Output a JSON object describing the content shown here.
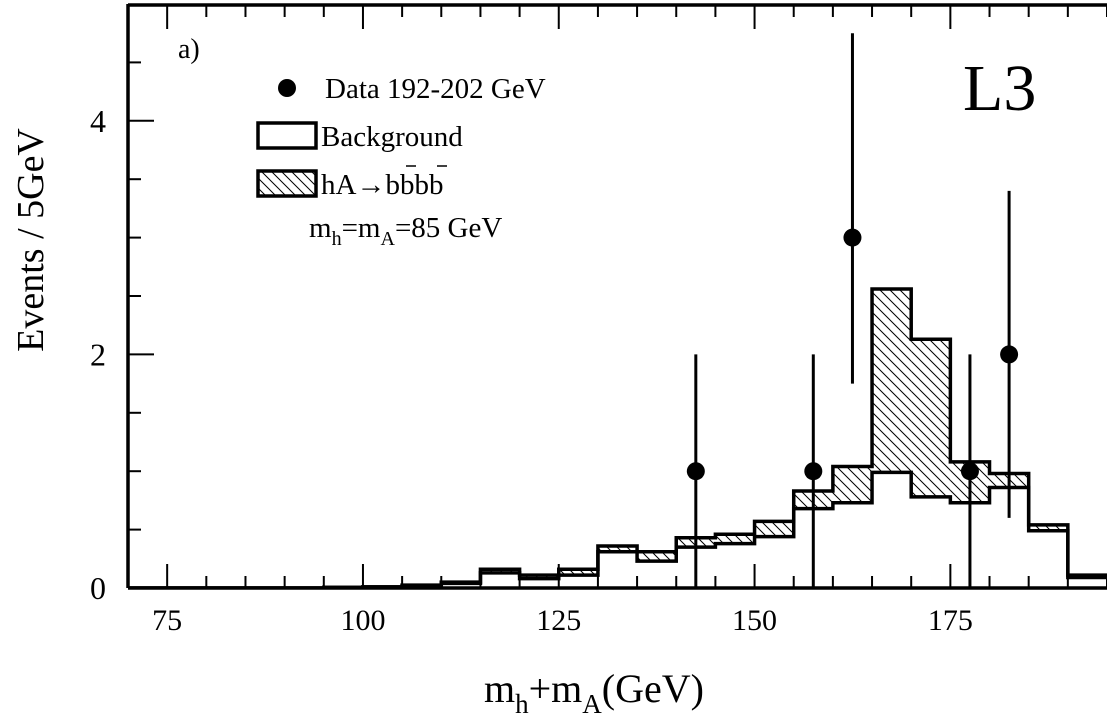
{
  "chart_data": {
    "type": "bar",
    "panel_label": "a)",
    "experiment_label": "L3",
    "xlabel": {
      "main": "m",
      "sub1": "h",
      "mid": "+m",
      "sub2": "A",
      "tail": "(GeV)"
    },
    "ylabel": "Events / 5GeV",
    "xlim": [
      70,
      195
    ],
    "ylim": [
      0,
      5
    ],
    "x_ticks": [
      75,
      100,
      125,
      150,
      175
    ],
    "y_ticks": [
      0,
      2,
      4
    ],
    "bin_width": 5,
    "bin_edges": [
      70,
      75,
      80,
      85,
      90,
      95,
      100,
      105,
      110,
      115,
      120,
      125,
      130,
      135,
      140,
      145,
      150,
      155,
      160,
      165,
      170,
      175,
      180,
      185,
      190,
      195
    ],
    "series": [
      {
        "name": "Background",
        "values": [
          0,
          0,
          0,
          0,
          0,
          0.005,
          0.01,
          0.02,
          0.04,
          0.13,
          0.08,
          0.11,
          0.31,
          0.23,
          0.35,
          0.38,
          0.44,
          0.68,
          0.73,
          0.99,
          0.78,
          0.73,
          0.86,
          0.49,
          0.09
        ]
      },
      {
        "name": "hA→bb̄bb̄ (signal, stacked on background)",
        "values": [
          0,
          0,
          0,
          0,
          0,
          0,
          0,
          0.005,
          0.01,
          0.03,
          0.03,
          0.05,
          0.05,
          0.08,
          0.08,
          0.08,
          0.13,
          0.15,
          0.31,
          1.57,
          1.35,
          0.35,
          0.12,
          0.05,
          0.02
        ]
      }
    ],
    "data_points": {
      "name": "Data 192-202 GeV",
      "points": [
        {
          "x": 142.5,
          "y": 1,
          "err_low": 1,
          "err_high": 1
        },
        {
          "x": 157.5,
          "y": 1,
          "err_low": 1,
          "err_high": 1
        },
        {
          "x": 162.5,
          "y": 3,
          "err_low": 1.25,
          "err_high": 1.75
        },
        {
          "x": 177.5,
          "y": 1,
          "err_low": 1,
          "err_high": 1
        },
        {
          "x": 182.5,
          "y": 2,
          "err_low": 1.4,
          "err_high": 1.4
        }
      ]
    },
    "legend": [
      {
        "type": "marker",
        "text": "Data 192-202 GeV"
      },
      {
        "type": "box",
        "text": "Background"
      },
      {
        "type": "hatched",
        "text": "hA→bbbb"
      },
      {
        "type": "none",
        "main": "m",
        "sub1": "h",
        "mid": "=m",
        "sub2": "A",
        "tail": "=85 GeV"
      }
    ],
    "legend_position": "top-left",
    "grid": false
  }
}
